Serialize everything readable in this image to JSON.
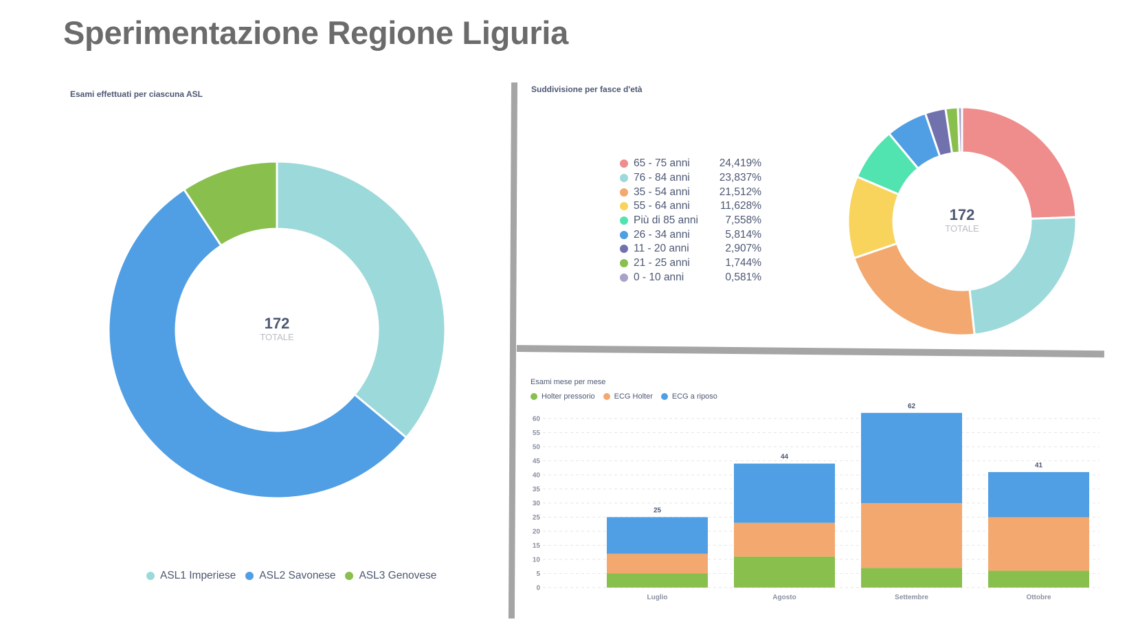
{
  "page": {
    "title": "Sperimentazione Regione Liguria"
  },
  "chart_data": [
    {
      "type": "pie",
      "variant": "donut",
      "title": "Esami effettuati per ciascuna ASL",
      "center_value": "172",
      "center_label": "TOTALE",
      "categories": [
        "ASL1 Imperiese",
        "ASL2 Savonese",
        "ASL3 Genovese"
      ],
      "values": [
        62,
        94,
        16
      ],
      "colors": [
        "#9cd9da",
        "#509ee3",
        "#88bf4d"
      ],
      "legend_position": "bottom"
    },
    {
      "type": "pie",
      "variant": "donut",
      "title": "Suddivisione per fasce d'età",
      "center_value": "172",
      "center_label": "TOTALE",
      "categories": [
        "65 - 75 anni",
        "76 - 84 anni",
        "35 - 54 anni",
        "55 - 64 anni",
        "Più di 85 anni",
        "26 - 34 anni",
        "11 - 20 anni",
        "21 - 25 anni",
        "0 - 10 anni"
      ],
      "percentages": [
        "24,419%",
        "23,837%",
        "21,512%",
        "11,628%",
        "7,558%",
        "5,814%",
        "2,907%",
        "1,744%",
        "0,581%"
      ],
      "values": [
        42,
        41,
        37,
        20,
        13,
        10,
        5,
        3,
        1
      ],
      "colors": [
        "#ef8c8c",
        "#9cd9da",
        "#f2a86f",
        "#f9d45c",
        "#51e4b0",
        "#509ee3",
        "#7172ad",
        "#88bf4d",
        "#a9a2c8"
      ],
      "legend_position": "left"
    },
    {
      "type": "bar",
      "stacked": true,
      "title": "Esami mese per mese",
      "categories": [
        "Luglio",
        "Agosto",
        "Settembre",
        "Ottobre"
      ],
      "series": [
        {
          "name": "Holter pressorio",
          "color": "#88bf4d",
          "values": [
            5,
            11,
            7,
            6
          ]
        },
        {
          "name": "ECG Holter",
          "color": "#f2a86f",
          "values": [
            7,
            12,
            23,
            19
          ]
        },
        {
          "name": "ECG a riposo",
          "color": "#509ee3",
          "values": [
            13,
            21,
            32,
            16
          ]
        }
      ],
      "totals": [
        25,
        44,
        62,
        41
      ],
      "yticks": [
        0,
        5,
        10,
        15,
        20,
        25,
        30,
        35,
        40,
        45,
        50,
        55,
        60
      ],
      "ylim": [
        0,
        60
      ],
      "grid": true,
      "legend_position": "top"
    }
  ]
}
